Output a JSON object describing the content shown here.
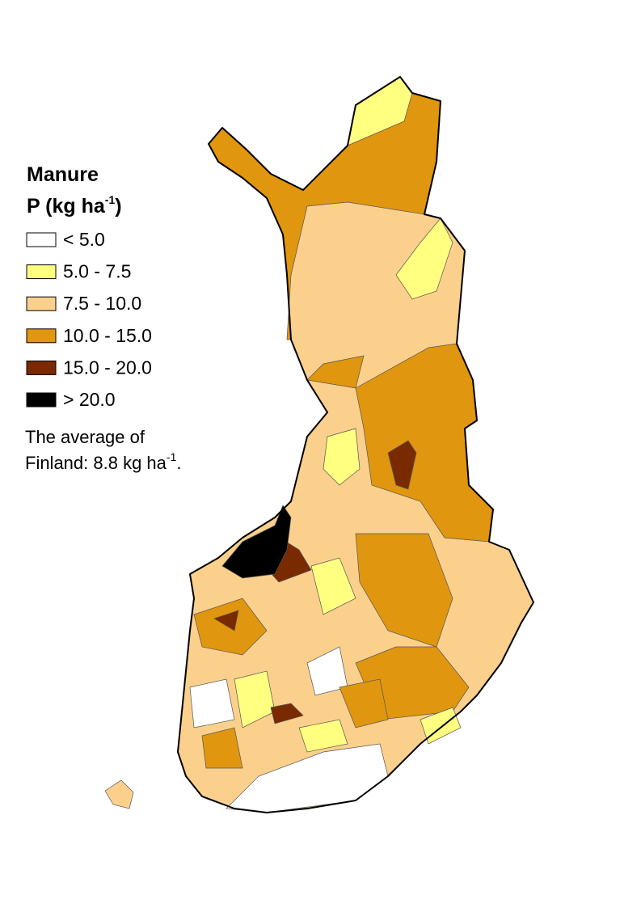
{
  "legend": {
    "title_line1": "Manure",
    "title_line2": "P (kg ha",
    "title_sup": "-1",
    "title_end": ")",
    "items": [
      {
        "label": "< 5.0",
        "color": "#ffffff"
      },
      {
        "label": "5.0 - 7.5",
        "color": "#ffff80"
      },
      {
        "label": "7.5 - 10.0",
        "color": "#fbd08c"
      },
      {
        "label": "10.0 - 15.0",
        "color": "#e0960e"
      },
      {
        "label": "15.0 - 20.0",
        "color": "#7a2a00"
      },
      {
        "label": "> 20.0",
        "color": "#000000"
      }
    ]
  },
  "note": {
    "line1": "The average of",
    "line2": "Finland: 8.8 kg ha",
    "sup": "-1",
    "end": "."
  }
}
